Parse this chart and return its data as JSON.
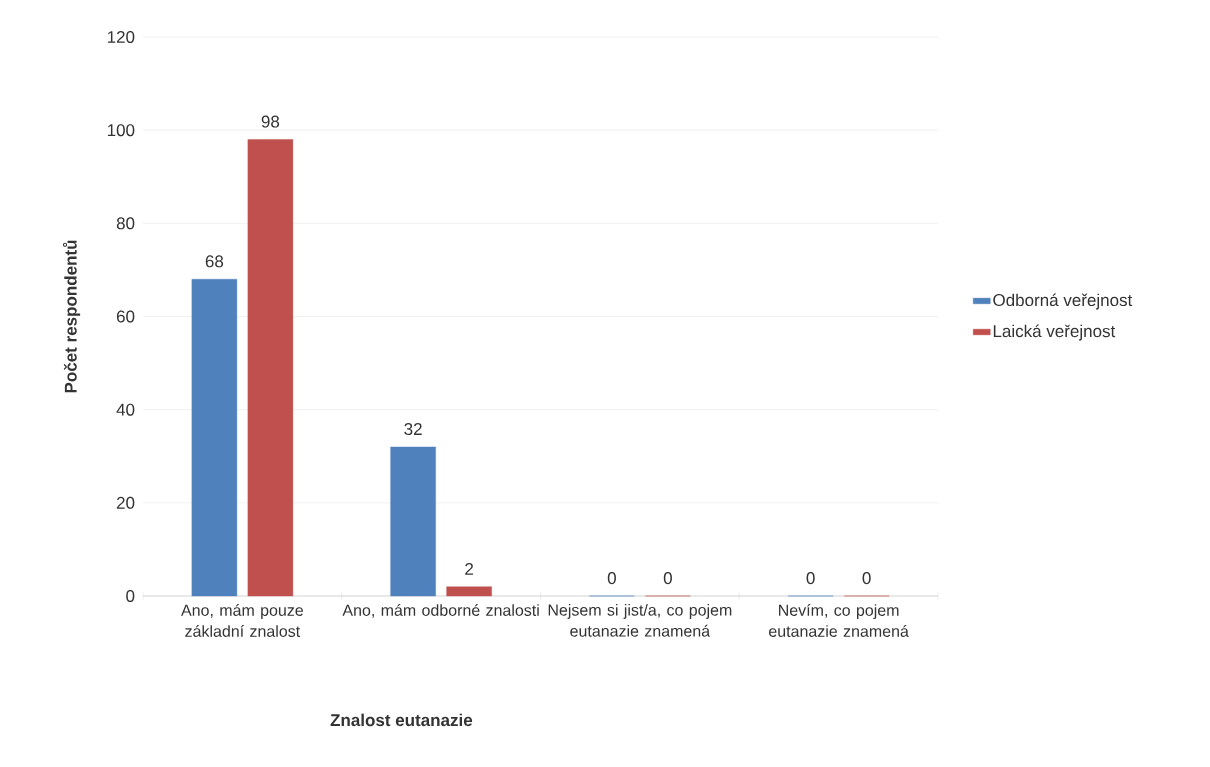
{
  "chart_data": {
    "type": "bar",
    "xlabel": "Znalost eutanazie",
    "ylabel": "Počet respondentů",
    "categories": [
      "Ano, mám pouze základní znalost",
      "Ano, mám odborné znalosti",
      "Nejsem si jist/a, co pojem eutanazie znamená",
      "Nevím, co pojem eutanazie znamená"
    ],
    "series": [
      {
        "name": "Odborná veřejnost",
        "color": "#4f81bd",
        "values": [
          68,
          32,
          0,
          0
        ]
      },
      {
        "name": "Laická veřejnost",
        "color": "#c0504d",
        "values": [
          98,
          2,
          0,
          0
        ]
      }
    ],
    "ylim": [
      0,
      120
    ],
    "yticks": [
      0,
      20,
      40,
      60,
      80,
      100,
      120
    ],
    "grid": "y",
    "legend": "right",
    "data_labels": true
  }
}
